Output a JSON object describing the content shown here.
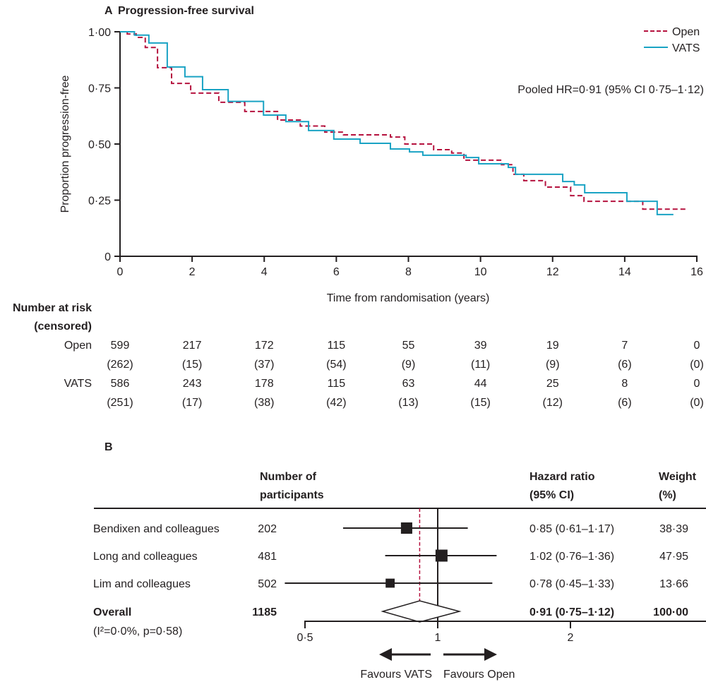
{
  "colors": {
    "open": "#b5123e",
    "vats": "#1aa3c4",
    "axis": "#231f20"
  },
  "chart_data": [
    {
      "type": "line",
      "panel_label": "A",
      "title": "Progression-free survival",
      "xlabel": "Time from randomisation (years)",
      "ylabel": "Proportion progression-free",
      "xlim": [
        0,
        16
      ],
      "ylim": [
        0,
        1
      ],
      "xticks": [
        0,
        2,
        4,
        6,
        8,
        10,
        12,
        14,
        16
      ],
      "xtick_labels": [
        "0",
        "2",
        "4",
        "6",
        "8",
        "10",
        "12",
        "14",
        "16"
      ],
      "yticks": [
        0,
        0.25,
        0.5,
        0.75,
        1.0
      ],
      "ytick_labels": [
        "0",
        "0·25",
        "0·50",
        "0·75",
        "1·00"
      ],
      "grid": false,
      "legend_position": "top-right",
      "annotation": "Pooled HR=0·91 (95% CI 0·75–1·12)",
      "series": [
        {
          "name": "Open",
          "style": "dashed",
          "end": 15.7,
          "steps": [
            [
              0,
              1
            ],
            [
              0.2,
              0.99
            ],
            [
              0.45,
              0.975
            ],
            [
              0.7,
              0.93
            ],
            [
              1.04,
              0.84
            ],
            [
              1.43,
              0.77
            ],
            [
              1.96,
              0.727
            ],
            [
              2.74,
              0.686
            ],
            [
              3.46,
              0.645
            ],
            [
              4.37,
              0.607
            ],
            [
              5.0,
              0.58
            ],
            [
              5.68,
              0.553
            ],
            [
              6.2,
              0.541
            ],
            [
              7.5,
              0.531
            ],
            [
              7.9,
              0.5
            ],
            [
              8.7,
              0.475
            ],
            [
              9.2,
              0.46
            ],
            [
              9.54,
              0.428
            ],
            [
              10.58,
              0.408
            ],
            [
              10.9,
              0.365
            ],
            [
              11.2,
              0.337
            ],
            [
              11.8,
              0.308
            ],
            [
              12.5,
              0.27
            ],
            [
              12.87,
              0.245
            ],
            [
              14.5,
              0.21
            ]
          ]
        },
        {
          "name": "VATS",
          "style": "solid",
          "end": 15.35,
          "steps": [
            [
              0,
              1
            ],
            [
              0.4,
              0.985
            ],
            [
              0.8,
              0.95
            ],
            [
              1.31,
              0.843
            ],
            [
              1.8,
              0.8
            ],
            [
              2.29,
              0.742
            ],
            [
              3.0,
              0.69
            ],
            [
              3.98,
              0.629
            ],
            [
              4.6,
              0.6
            ],
            [
              5.23,
              0.56
            ],
            [
              5.93,
              0.522
            ],
            [
              6.66,
              0.503
            ],
            [
              7.5,
              0.478
            ],
            [
              8.03,
              0.465
            ],
            [
              8.4,
              0.45
            ],
            [
              9.6,
              0.44
            ],
            [
              9.95,
              0.412
            ],
            [
              10.77,
              0.396
            ],
            [
              10.97,
              0.365
            ],
            [
              12.28,
              0.333
            ],
            [
              12.6,
              0.318
            ],
            [
              12.89,
              0.283
            ],
            [
              14.06,
              0.245
            ],
            [
              14.9,
              0.186
            ]
          ]
        }
      ],
      "risk_table": {
        "title": "Number at risk",
        "subtitle": "(censored)",
        "times": [
          0,
          2,
          4,
          6,
          8,
          10,
          12,
          14,
          16
        ],
        "rows": [
          {
            "label": "Open",
            "at_risk": [
              "599",
              "217",
              "172",
              "115",
              "55",
              "39",
              "19",
              "7",
              "0"
            ],
            "censored": [
              "(262)",
              "(15)",
              "(37)",
              "(54)",
              "(9)",
              "(11)",
              "(9)",
              "(6)",
              "(0)"
            ]
          },
          {
            "label": "VATS",
            "at_risk": [
              "586",
              "243",
              "178",
              "115",
              "63",
              "44",
              "25",
              "8",
              "0"
            ],
            "censored": [
              "(251)",
              "(17)",
              "(38)",
              "(42)",
              "(13)",
              "(15)",
              "(12)",
              "(6)",
              "(0)"
            ]
          }
        ]
      }
    },
    {
      "type": "forest",
      "panel_label": "B",
      "headers": {
        "participants_1": "Number of",
        "participants_2": "participants",
        "hr_1": "Hazard ratio",
        "hr_2": "(95% CI)",
        "weight_1": "Weight",
        "weight_2": "(%)"
      },
      "xscale": "log",
      "xticks": [
        0.5,
        1,
        2
      ],
      "xtick_labels": [
        "0·5",
        "1",
        "2"
      ],
      "favours_left": "Favours VATS",
      "favours_right": "Favours Open",
      "heterogeneity": "(I²=0·0%, p=0·58)",
      "studies": [
        {
          "name": "Bendixen and colleagues",
          "n": "202",
          "hr": 0.85,
          "lo": 0.61,
          "hi": 1.17,
          "hr_text": "0·85 (0·61–1·17)",
          "weight": 38.39,
          "weight_text": "38·39"
        },
        {
          "name": "Long and colleagues",
          "n": "481",
          "hr": 1.02,
          "lo": 0.76,
          "hi": 1.36,
          "hr_text": "1·02 (0·76–1·36)",
          "weight": 47.95,
          "weight_text": "47·95"
        },
        {
          "name": "Lim and colleagues",
          "n": "502",
          "hr": 0.78,
          "lo": 0.45,
          "hi": 1.33,
          "hr_text": "0·78 (0·45–1·33)",
          "weight": 13.66,
          "weight_text": "13·66"
        }
      ],
      "overall": {
        "name": "Overall",
        "n": "1185",
        "hr": 0.91,
        "lo": 0.75,
        "hi": 1.12,
        "hr_text": "0·91 (0·75–1·12)",
        "weight_text": "100·00"
      }
    }
  ]
}
